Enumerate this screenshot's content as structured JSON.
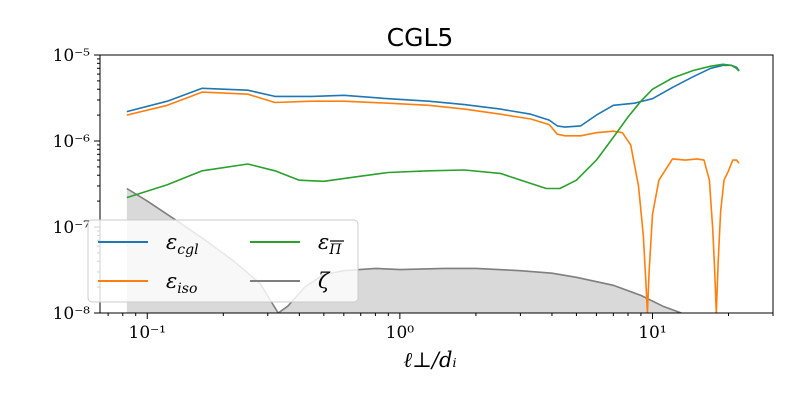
{
  "chart_data": {
    "type": "line",
    "title": "CGL5",
    "xlabel": "ℓ⊥/dᵢ",
    "ylabel": "",
    "x_scale": "log",
    "y_scale": "log",
    "xlim": [
      0.065,
      30
    ],
    "ylim": [
      1e-08,
      1e-05
    ],
    "x_ticks": [
      {
        "value": 0.1,
        "label": "10⁻¹"
      },
      {
        "value": 1,
        "label": "10⁰"
      },
      {
        "value": 10,
        "label": "10¹"
      }
    ],
    "y_ticks": [
      {
        "value": 1e-08,
        "label": "10⁻⁸"
      },
      {
        "value": 1e-07,
        "label": "10⁻⁷"
      },
      {
        "value": 1e-06,
        "label": "10⁻⁶"
      },
      {
        "value": 1e-05,
        "label": "10⁻⁵"
      }
    ],
    "grid": false,
    "legend_placement": "lower-left",
    "legend_columns": 2,
    "series": [
      {
        "name": "εcgl",
        "legend_main": "ε",
        "legend_sub": "cgl",
        "color": "#1f77b4",
        "style": "line",
        "x": [
          0.083,
          0.12,
          0.165,
          0.25,
          0.32,
          0.45,
          0.6,
          0.9,
          1.3,
          1.8,
          2.5,
          3.3,
          3.9,
          4.2,
          4.5,
          5.2,
          6.0,
          7.0,
          8.5,
          10.0,
          12.0,
          14.5,
          17.0,
          19.0,
          20.5,
          21.5,
          22.0
        ],
        "y": [
          2.2e-06,
          2.9e-06,
          4.1e-06,
          3.9e-06,
          3.3e-06,
          3.3e-06,
          3.4e-06,
          3.1e-06,
          2.9e-06,
          2.65e-06,
          2.35e-06,
          2.05e-06,
          1.75e-06,
          1.5e-06,
          1.45e-06,
          1.5e-06,
          2e-06,
          2.6e-06,
          2.75e-06,
          3.1e-06,
          4.2e-06,
          5.6e-06,
          7e-06,
          7.6e-06,
          7.6e-06,
          7.2e-06,
          6.6e-06
        ]
      },
      {
        "name": "εiso",
        "legend_main": "ε",
        "legend_sub": "iso",
        "color": "#ff7f0e",
        "style": "line",
        "x": [
          0.083,
          0.12,
          0.165,
          0.25,
          0.32,
          0.45,
          0.6,
          0.9,
          1.3,
          1.8,
          2.5,
          3.3,
          3.9,
          4.2,
          4.5,
          5.2,
          6.0,
          7.0,
          7.6,
          8.2,
          8.8,
          9.2,
          9.4,
          9.55,
          9.7,
          10.0,
          10.6,
          11.2,
          12.0,
          13.5,
          15.0,
          16.0,
          16.8,
          17.3,
          17.6,
          17.9,
          18.2,
          18.6,
          19.2,
          20.0,
          20.8,
          21.5,
          22.0
        ],
        "y": [
          2e-06,
          2.6e-06,
          3.7e-06,
          3.5e-06,
          2.8e-06,
          2.9e-06,
          2.9e-06,
          2.75e-06,
          2.6e-06,
          2.35e-06,
          2.05e-06,
          1.8e-06,
          1.55e-06,
          1.2e-06,
          1.15e-06,
          1.15e-06,
          1.25e-06,
          1.3e-06,
          1.25e-06,
          9e-07,
          3e-07,
          8e-08,
          2.5e-08,
          1e-08,
          3e-08,
          1.4e-07,
          3.5e-07,
          4.5e-07,
          6.2e-07,
          6e-07,
          6.2e-07,
          6e-07,
          3.5e-07,
          1e-07,
          3.5e-08,
          1e-08,
          4e-08,
          1.5e-07,
          3.5e-07,
          4.5e-07,
          6e-07,
          6e-07,
          5.5e-07
        ]
      },
      {
        "name": "εΠ",
        "legend_main": "ε",
        "legend_sub": "Π",
        "color": "#2ca02c",
        "style": "line",
        "x": [
          0.083,
          0.12,
          0.165,
          0.25,
          0.32,
          0.4,
          0.5,
          0.7,
          0.9,
          1.3,
          1.8,
          2.5,
          3.2,
          3.8,
          4.3,
          5.0,
          6.0,
          7.0,
          8.0,
          9.0,
          10.0,
          12.0,
          14.5,
          17.0,
          19.0,
          20.5,
          21.5,
          22.0
        ],
        "y": [
          2.2e-07,
          3.1e-07,
          4.5e-07,
          5.4e-07,
          4.5e-07,
          3.5e-07,
          3.4e-07,
          3.9e-07,
          4.3e-07,
          4.5e-07,
          4.6e-07,
          4.2e-07,
          3.3e-07,
          2.8e-07,
          2.8e-07,
          3.5e-07,
          6e-07,
          1.1e-06,
          1.9e-06,
          2.9e-06,
          4e-06,
          5.4e-06,
          6.6e-06,
          7.4e-06,
          7.8e-06,
          7.6e-06,
          7e-06,
          6.5e-06
        ]
      },
      {
        "name": "ζ",
        "legend_main": "ζ",
        "legend_sub": "",
        "color": "#7f7f7f",
        "fill": "#d9d9d9",
        "style": "area",
        "x": [
          0.083,
          0.1,
          0.13,
          0.17,
          0.22,
          0.28,
          0.33,
          0.36,
          0.42,
          0.5,
          0.6,
          0.8,
          1.0,
          1.5,
          2.0,
          3.0,
          4.0,
          5.0,
          7.0,
          9.0,
          11.0,
          13.0
        ],
        "y": [
          2.8e-07,
          2e-07,
          1.2e-07,
          7e-08,
          4e-08,
          2.2e-08,
          1e-08,
          1.2e-08,
          2e-08,
          2.8e-08,
          3.1e-08,
          3.3e-08,
          3.2e-08,
          3.3e-08,
          3.3e-08,
          3.1e-08,
          2.9e-08,
          2.6e-08,
          2.1e-08,
          1.6e-08,
          1.2e-08,
          1e-08
        ]
      }
    ]
  }
}
